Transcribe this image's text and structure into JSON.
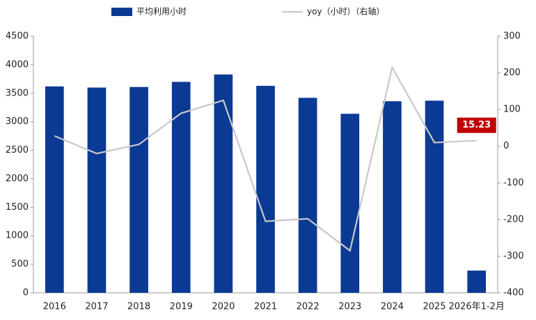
{
  "chart_data": {
    "type": "bar-line",
    "categories": [
      "2016",
      "2017",
      "2018",
      "2019",
      "2020",
      "2021",
      "2022",
      "2023",
      "2024",
      "2025",
      "2026年1-2月"
    ],
    "series": [
      {
        "name": "平均利用小时",
        "type": "bar",
        "color": "#0b3a94",
        "values": [
          3620,
          3600,
          3610,
          3700,
          3830,
          3630,
          3420,
          3140,
          3360,
          3370,
          390
        ]
      },
      {
        "name": "yoy（小时）（右轴）",
        "type": "line",
        "axis": "y2",
        "color": "#c8c8c8",
        "values": [
          28,
          -20,
          5,
          90,
          125,
          -205,
          -198,
          -285,
          215,
          10,
          15.23
        ],
        "value_labels": [
          null,
          null,
          null,
          null,
          null,
          null,
          null,
          null,
          null,
          null,
          "15.23"
        ]
      }
    ],
    "ylim": [
      0,
      4500
    ],
    "yticks": [
      0,
      500,
      1000,
      1500,
      2000,
      2500,
      3000,
      3500,
      4000,
      4500
    ],
    "y2lim": [
      -400,
      300
    ],
    "y2ticks": [
      -400,
      -300,
      -200,
      -100,
      0,
      100,
      200,
      300
    ],
    "grid": false,
    "legend": "top"
  }
}
